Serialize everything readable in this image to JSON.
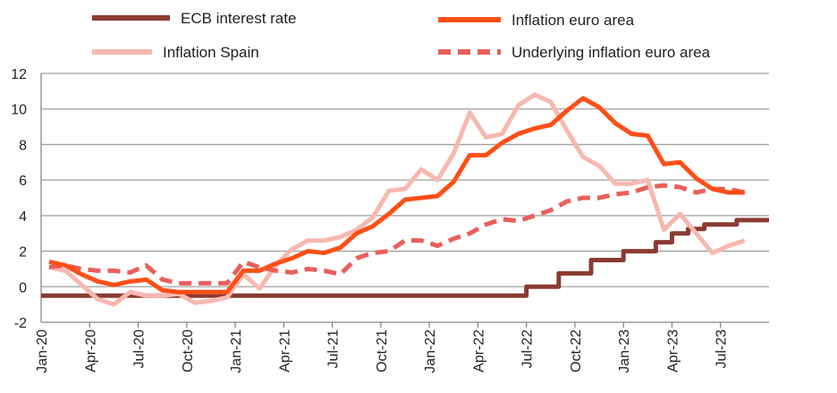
{
  "chart_data": {
    "type": "line",
    "title": "",
    "xlabel": "",
    "ylabel": "",
    "ylim": [
      -2,
      12
    ],
    "yticks": [
      -2,
      0,
      2,
      4,
      6,
      8,
      10,
      12
    ],
    "grid": true,
    "legend_position": "top",
    "x": [
      "Jan-20",
      "Feb-20",
      "Mar-20",
      "Apr-20",
      "May-20",
      "Jun-20",
      "Jul-20",
      "Aug-20",
      "Sep-20",
      "Oct-20",
      "Nov-20",
      "Dec-20",
      "Jan-21",
      "Feb-21",
      "Mar-21",
      "Apr-21",
      "May-21",
      "Jun-21",
      "Jul-21",
      "Aug-21",
      "Sep-21",
      "Oct-21",
      "Nov-21",
      "Dec-21",
      "Jan-22",
      "Feb-22",
      "Mar-22",
      "Apr-22",
      "May-22",
      "Jun-22",
      "Jul-22",
      "Aug-22",
      "Sep-22",
      "Oct-22",
      "Nov-22",
      "Dec-22",
      "Jan-23",
      "Feb-23",
      "Mar-23",
      "Apr-23",
      "May-23",
      "Jun-23",
      "Jul-23",
      "Aug-23",
      "Sep-23"
    ],
    "xtick_labels": [
      "Jan-20",
      "Apr-20",
      "Jul-20",
      "Oct-20",
      "Jan-21",
      "Apr-21",
      "Jul-21",
      "Oct-21",
      "Jan-22",
      "Apr-22",
      "Jul-22",
      "Oct-22",
      "Jan-23",
      "Apr-23",
      "Jul-23"
    ],
    "series": [
      {
        "name": "ECB interest rate",
        "color": "#8B3B31",
        "style": "step",
        "values": [
          -0.5,
          -0.5,
          -0.5,
          -0.5,
          -0.5,
          -0.5,
          -0.5,
          -0.5,
          -0.5,
          -0.5,
          -0.5,
          -0.5,
          -0.5,
          -0.5,
          -0.5,
          -0.5,
          -0.5,
          -0.5,
          -0.5,
          -0.5,
          -0.5,
          -0.5,
          -0.5,
          -0.5,
          -0.5,
          -0.5,
          -0.5,
          -0.5,
          -0.5,
          -0.5,
          0,
          0,
          0.75,
          0.75,
          1.5,
          1.5,
          2.0,
          2.0,
          2.5,
          3.0,
          3.25,
          3.5,
          3.5,
          3.75,
          3.75
        ]
      },
      {
        "name": "Inflation euro area",
        "color": "#FF4F17",
        "style": "solid",
        "values": [
          1.4,
          1.2,
          0.7,
          0.3,
          0.1,
          0.3,
          0.4,
          -0.2,
          -0.3,
          -0.3,
          -0.3,
          -0.3,
          0.9,
          0.9,
          1.3,
          1.6,
          2.0,
          1.9,
          2.2,
          3.0,
          3.4,
          4.1,
          4.9,
          5.0,
          5.1,
          5.9,
          7.4,
          7.4,
          8.1,
          8.6,
          8.9,
          9.1,
          9.9,
          10.6,
          10.1,
          9.2,
          8.6,
          8.5,
          6.9,
          7.0,
          6.1,
          5.5,
          5.3,
          5.3,
          null
        ]
      },
      {
        "name": "Inflation Spain",
        "color": "#F7B8B0",
        "style": "solid",
        "values": [
          1.1,
          0.9,
          0.1,
          -0.7,
          -1.0,
          -0.3,
          -0.5,
          -0.5,
          -0.4,
          -0.9,
          -0.8,
          -0.6,
          0.7,
          -0.1,
          1.2,
          2.1,
          2.6,
          2.6,
          2.8,
          3.2,
          3.9,
          5.4,
          5.5,
          6.6,
          6.0,
          7.5,
          9.8,
          8.4,
          8.6,
          10.2,
          10.8,
          10.4,
          8.8,
          7.3,
          6.8,
          5.8,
          5.8,
          6.0,
          3.2,
          4.1,
          3.0,
          1.9,
          2.3,
          2.6,
          null
        ]
      },
      {
        "name": "Underlying inflation euro area",
        "color": "#EA5F5A",
        "style": "dashed",
        "values": [
          1.1,
          1.2,
          1.0,
          0.9,
          0.9,
          0.8,
          1.2,
          0.4,
          0.2,
          0.2,
          0.2,
          0.2,
          1.4,
          1.1,
          0.9,
          0.8,
          1.0,
          0.9,
          0.7,
          1.6,
          1.9,
          2.0,
          2.6,
          2.6,
          2.3,
          2.7,
          3.0,
          3.5,
          3.8,
          3.7,
          4.0,
          4.3,
          4.8,
          5.0,
          5.0,
          5.2,
          5.3,
          5.6,
          5.7,
          5.6,
          5.3,
          5.5,
          5.5,
          5.3,
          null
        ]
      }
    ]
  }
}
